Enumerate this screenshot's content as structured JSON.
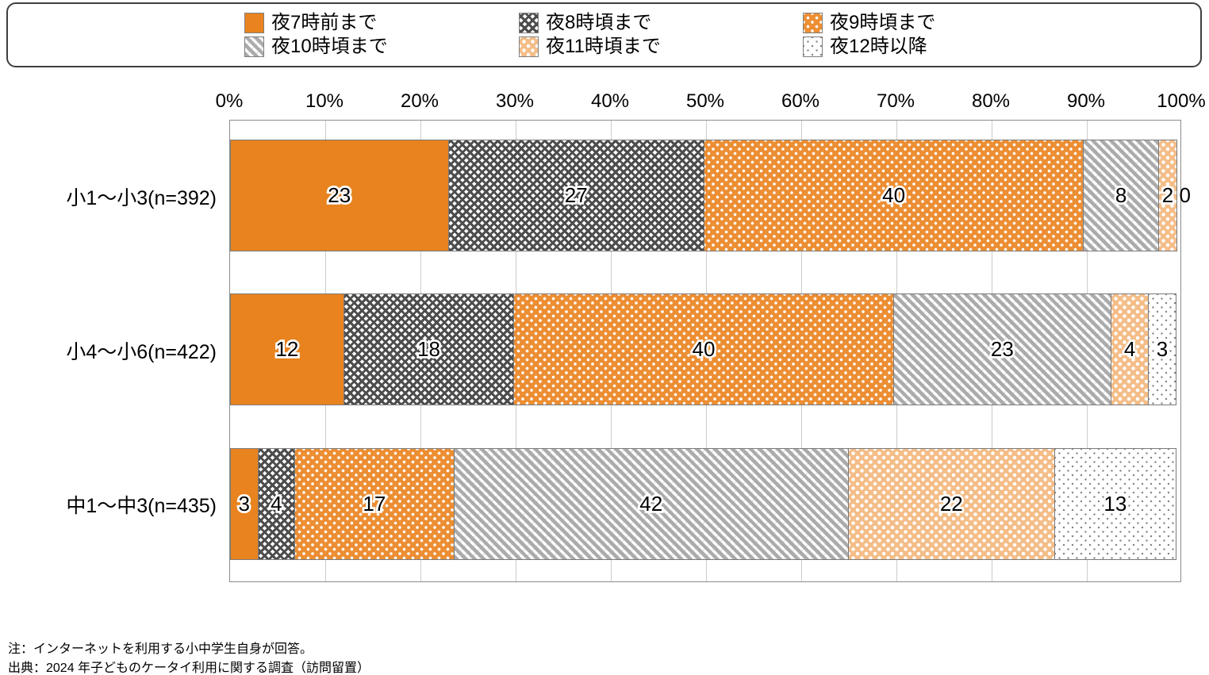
{
  "chart_data": {
    "type": "bar",
    "orientation": "horizontal-stacked",
    "categories": [
      "小1～小3(n=392)",
      "小4～小6(n=422)",
      "中1～中3(n=435)"
    ],
    "series": [
      {
        "name": "夜7時前まで",
        "pattern": "solid-orange",
        "values": [
          23,
          12,
          3
        ]
      },
      {
        "name": "夜8時頃まで",
        "pattern": "dark-crosshatch",
        "values": [
          27,
          18,
          4
        ]
      },
      {
        "name": "夜9時頃まで",
        "pattern": "orange-white-dots",
        "values": [
          40,
          40,
          17
        ]
      },
      {
        "name": "夜10時頃まで",
        "pattern": "gray-diagonal",
        "values": [
          8,
          23,
          42
        ]
      },
      {
        "name": "夜11時頃まで",
        "pattern": "peach-white-dots",
        "values": [
          2,
          4,
          22
        ]
      },
      {
        "name": "夜12時以降",
        "pattern": "white-gray-dots",
        "values": [
          0,
          3,
          13
        ]
      }
    ],
    "xlim": [
      0,
      100
    ],
    "ticks": [
      "0%",
      "10%",
      "20%",
      "30%",
      "40%",
      "50%",
      "60%",
      "70%",
      "80%",
      "90%",
      "100%"
    ],
    "grid": true,
    "legend_position": "top"
  },
  "notes": {
    "line1": "注：インターネットを利用する小中学生自身が回答。",
    "line2": "出典：2024 年子どものケータイ利用に関する調査（訪問留置）"
  },
  "colors": {
    "orange": "#E8831F",
    "orange_dots_bg": "#EC8E33",
    "peach": "#F4BD88",
    "dark_hatch": "#4D4D4D",
    "gray_line": "#ABABAB",
    "dot_gray": "#848484"
  }
}
